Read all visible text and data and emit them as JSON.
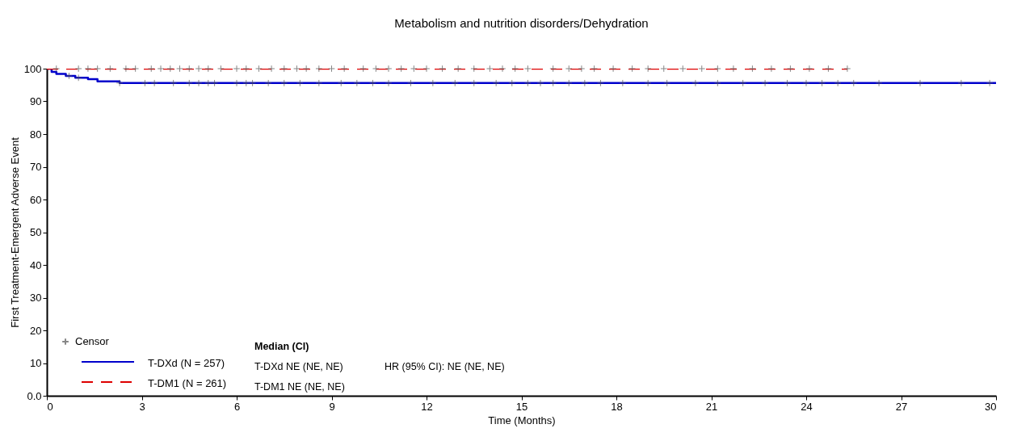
{
  "chart_data": {
    "type": "step",
    "title": "Metabolism and nutrition disorders/Dehydration",
    "xlabel": "Time (Months)",
    "ylabel": "First Treatment-Emergent Adverse Event",
    "xlim": [
      0,
      30
    ],
    "xticks": [
      0,
      3,
      6,
      9,
      12,
      15,
      18,
      21,
      24,
      27,
      30
    ],
    "ylim": [
      0,
      100
    ],
    "yticks": [
      {
        "value": 0,
        "label": "0.0"
      },
      10,
      20,
      30,
      40,
      50,
      60,
      70,
      80,
      90,
      100
    ],
    "grid": false,
    "legend": "bottom left",
    "series": [
      {
        "name": "T-DXd (N = 257)",
        "color": "#0000cc",
        "line_style": "solid",
        "x": [
          0,
          0.15,
          0.3,
          0.6,
          0.9,
          1.3,
          1.6,
          2.3,
          30
        ],
        "values": [
          100,
          99,
          98.4,
          97.8,
          97.2,
          96.8,
          96.1,
          95.6,
          95.6
        ]
      },
      {
        "name": "T-DM1 (N = 261)",
        "color": "#dd0000",
        "line_style": "dashed",
        "x": [
          0,
          25.3
        ],
        "values": [
          100,
          100
        ]
      },
      {
        "name": "Censor",
        "type": "scatter",
        "marker": "cross",
        "color": "#555555",
        "x": [
          0.3,
          1.0,
          1.3,
          1.6,
          2.0,
          2.5,
          2.8,
          3.3,
          3.6,
          3.9,
          4.2,
          4.5,
          4.8,
          5.1,
          5.5,
          6.0,
          6.3,
          6.7,
          7.1,
          7.5,
          7.9,
          8.2,
          8.6,
          9.0,
          9.4,
          10.0,
          10.4,
          10.8,
          11.2,
          11.6,
          12.0,
          12.5,
          13.0,
          13.5,
          14.0,
          14.4,
          14.8,
          15.2,
          16.0,
          16.5,
          16.9,
          17.3,
          17.9,
          18.5,
          19.0,
          19.5,
          20.1,
          20.7,
          21.2,
          21.7,
          22.3,
          22.9,
          23.5,
          24.1,
          24.7,
          25.3,
          0.7,
          1.0,
          2.3,
          3.1,
          3.4,
          4.0,
          4.5,
          4.8,
          5.1,
          5.3,
          6.0,
          6.3,
          6.5,
          7.0,
          7.5,
          8.0,
          8.6,
          9.3,
          9.8,
          10.3,
          10.8,
          11.5,
          12.2,
          12.9,
          13.5,
          14.2,
          14.7,
          15.2,
          15.6,
          16.0,
          16.5,
          17.0,
          17.5,
          18.2,
          19.0,
          19.6,
          20.5,
          21.2,
          22.0,
          22.7,
          23.4,
          24.0,
          24.5,
          25.0,
          25.5,
          26.3,
          27.6,
          28.9,
          29.8
        ],
        "values": [
          100,
          100,
          100,
          100,
          100,
          100,
          100,
          100,
          100,
          100,
          100,
          100,
          100,
          100,
          100,
          100,
          100,
          100,
          100,
          100,
          100,
          100,
          100,
          100,
          100,
          100,
          100,
          100,
          100,
          100,
          100,
          100,
          100,
          100,
          100,
          100,
          100,
          100,
          100,
          100,
          100,
          100,
          100,
          100,
          100,
          100,
          100,
          100,
          100,
          100,
          100,
          100,
          100,
          100,
          100,
          100,
          97.8,
          97.2,
          95.6,
          95.6,
          95.6,
          95.6,
          95.6,
          95.6,
          95.6,
          95.6,
          95.6,
          95.6,
          95.6,
          95.6,
          95.6,
          95.6,
          95.6,
          95.6,
          95.6,
          95.6,
          95.6,
          95.6,
          95.6,
          95.6,
          95.6,
          95.6,
          95.6,
          95.6,
          95.6,
          95.6,
          95.6,
          95.6,
          95.6,
          95.6,
          95.6,
          95.6,
          95.6,
          95.6,
          95.6,
          95.6,
          95.6,
          95.6,
          95.6,
          95.6,
          95.6,
          95.6,
          95.6,
          95.6,
          95.6
        ]
      }
    ],
    "annotations": [
      "Median (CI)",
      "T-DXd  NE (NE, NE)",
      "HR (95% CI): NE (NE, NE)",
      "T-DM1   NE (NE, NE)"
    ]
  }
}
